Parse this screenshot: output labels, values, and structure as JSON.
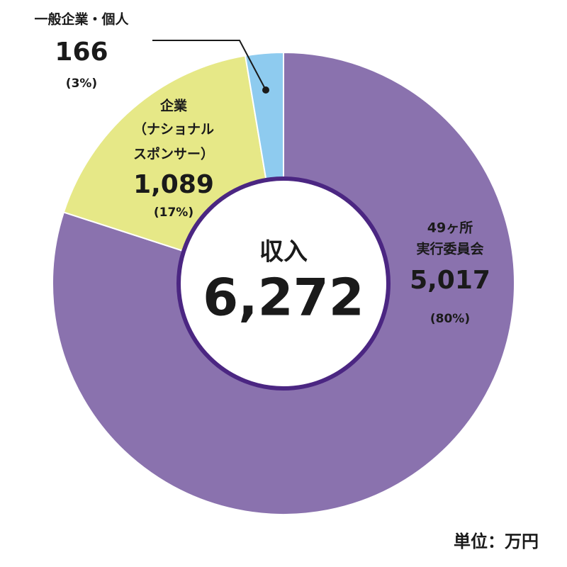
{
  "chart_data": {
    "type": "donut",
    "center_title": "収入",
    "center_value": 6272,
    "center_value_label": "6,272",
    "categories": [
      [
        "49ヶ所",
        "実行委員会"
      ],
      [
        "企業",
        "（ナショナル",
        "スポンサー）"
      ],
      [
        "一般企業・個人"
      ]
    ],
    "values": [
      5017,
      1089,
      166
    ],
    "value_labels": [
      "5,017",
      "1,089",
      "166"
    ],
    "percentages": [
      80,
      17,
      3
    ],
    "percentage_labels": [
      "(80%)",
      "(17%)",
      "(3%)"
    ],
    "colors": [
      "#8a72ae",
      "#e6e887",
      "#8ecbef"
    ],
    "unit_note": "単位：万円"
  }
}
